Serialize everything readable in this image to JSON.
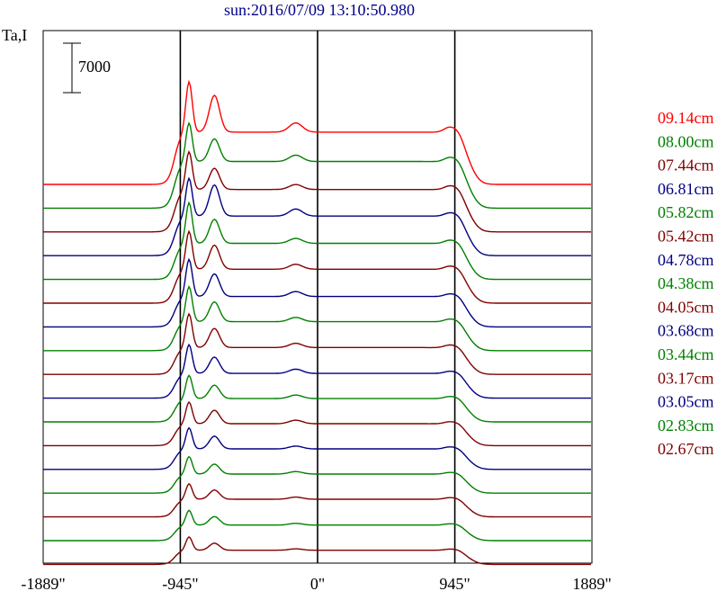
{
  "chart_data": {
    "type": "line",
    "title": "sun:2016/07/09 13:10:50.980",
    "ylabel": "Ta,I",
    "scale_bar_label": "7000",
    "x_ticks": [
      "-1889\"",
      "-945\"",
      "0\"",
      "945\"",
      "1889\""
    ],
    "xlim": [
      -1889,
      1889
    ],
    "vertical_guides_x": [
      -945,
      0,
      945
    ],
    "colors": {
      "axes": "#000000",
      "title": "#00008b",
      "guides": "#000000"
    },
    "series": [
      {
        "name": "09.14cm",
        "color": "#ff0000",
        "baseline": 0,
        "p1": 14600,
        "p2": 12600,
        "plateau": 7400,
        "mid_bump": 1300,
        "edge_bump": 500
      },
      {
        "name": "08.00cm",
        "color": "#008000",
        "baseline": 0,
        "p1": 12100,
        "p2": 9800,
        "plateau": 6600,
        "mid_bump": 900,
        "edge_bump": 400
      },
      {
        "name": "07.44cm",
        "color": "#800000",
        "baseline": 0,
        "p1": 11400,
        "p2": 9000,
        "plateau": 6000,
        "mid_bump": 700,
        "edge_bump": 350
      },
      {
        "name": "06.81cm",
        "color": "#000080",
        "baseline": 0,
        "p1": 11000,
        "p2": 10000,
        "plateau": 5600,
        "mid_bump": 1000,
        "edge_bump": 300
      },
      {
        "name": "05.82cm",
        "color": "#008000",
        "baseline": 0,
        "p1": 10900,
        "p2": 8500,
        "plateau": 5100,
        "mid_bump": 700,
        "edge_bump": 300
      },
      {
        "name": "05.42cm",
        "color": "#800000",
        "baseline": 0,
        "p1": 10200,
        "p2": 8200,
        "plateau": 4800,
        "mid_bump": 700,
        "edge_bump": 300
      },
      {
        "name": "04.78cm",
        "color": "#000080",
        "baseline": 0,
        "p1": 9600,
        "p2": 7500,
        "plateau": 4300,
        "mid_bump": 700,
        "edge_bump": 250
      },
      {
        "name": "04.38cm",
        "color": "#008000",
        "baseline": 0,
        "p1": 9100,
        "p2": 6900,
        "plateau": 4100,
        "mid_bump": 600,
        "edge_bump": 250
      },
      {
        "name": "04.05cm",
        "color": "#800000",
        "baseline": 0,
        "p1": 8600,
        "p2": 6500,
        "plateau": 3800,
        "mid_bump": 600,
        "edge_bump": 250
      },
      {
        "name": "03.68cm",
        "color": "#000080",
        "baseline": 0,
        "p1": 7600,
        "p2": 5800,
        "plateau": 3500,
        "mid_bump": 600,
        "edge_bump": 200
      },
      {
        "name": "03.44cm",
        "color": "#008000",
        "baseline": 0,
        "p1": 6600,
        "p2": 5200,
        "plateau": 3300,
        "mid_bump": 500,
        "edge_bump": 200
      },
      {
        "name": "03.17cm",
        "color": "#800000",
        "baseline": 0,
        "p1": 6200,
        "p2": 5000,
        "plateau": 3100,
        "mid_bump": 500,
        "edge_bump": 200
      },
      {
        "name": "03.05cm",
        "color": "#000080",
        "baseline": 0,
        "p1": 5900,
        "p2": 4700,
        "plateau": 2900,
        "mid_bump": 400,
        "edge_bump": 200
      },
      {
        "name": "02.83cm",
        "color": "#008000",
        "baseline": 0,
        "p1": 5200,
        "p2": 4100,
        "plateau": 2700,
        "mid_bump": 350,
        "edge_bump": 150
      },
      {
        "name": "02.67cm",
        "color": "#800000",
        "baseline": 0,
        "p1": 4700,
        "p2": 3800,
        "plateau": 2500,
        "mid_bump": 300,
        "edge_bump": 150
      },
      {
        "name": "",
        "color": "#008000",
        "baseline": 0,
        "p1": 4300,
        "p2": 3400,
        "plateau": 2200,
        "mid_bump": 250,
        "edge_bump": 120
      },
      {
        "name": "",
        "color": "#800000",
        "baseline": 0,
        "p1": 3900,
        "p2": 3000,
        "plateau": 2000,
        "mid_bump": 200,
        "edge_bump": 100
      }
    ],
    "legend_placement": "right"
  }
}
